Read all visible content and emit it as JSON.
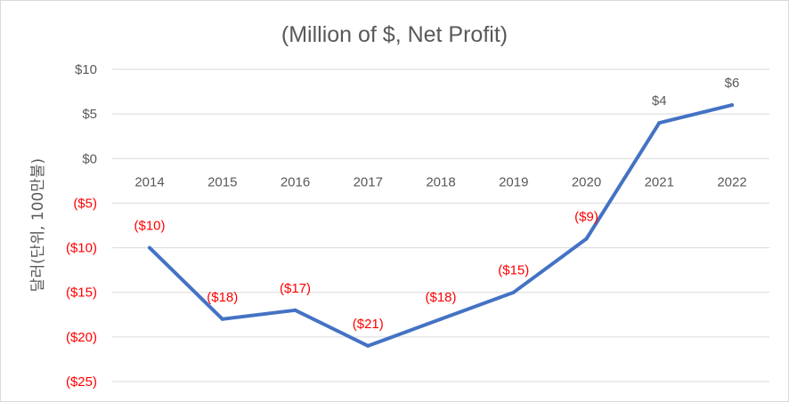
{
  "chart_data": {
    "type": "line",
    "title": "(Million of $, Net Profit)",
    "xlabel": "",
    "ylabel": "달러(단위, 100만불)",
    "categories": [
      "2014",
      "2015",
      "2016",
      "2017",
      "2018",
      "2019",
      "2020",
      "2021",
      "2022"
    ],
    "series": [
      {
        "values": [
          -10,
          -18,
          -17,
          -21,
          -18,
          -15,
          -9,
          4,
          6
        ]
      }
    ],
    "data_labels": [
      "($10)",
      "($18)",
      "($17)",
      "($21)",
      "($18)",
      "($15)",
      "($9)",
      "$4",
      "$6"
    ],
    "yticks": [
      10,
      5,
      0,
      -5,
      -10,
      -15,
      -20,
      -25
    ],
    "ytick_labels": [
      "$10",
      "$5",
      "$0",
      "($5)",
      "($10)",
      "($15)",
      "($20)",
      "($25)"
    ],
    "ylim": [
      -25,
      10
    ],
    "grid": true,
    "legend": "none",
    "colors": {
      "line": "#4472c4",
      "negative_text": "#ff0000",
      "text": "#595959",
      "grid": "#d9d9d9"
    }
  }
}
